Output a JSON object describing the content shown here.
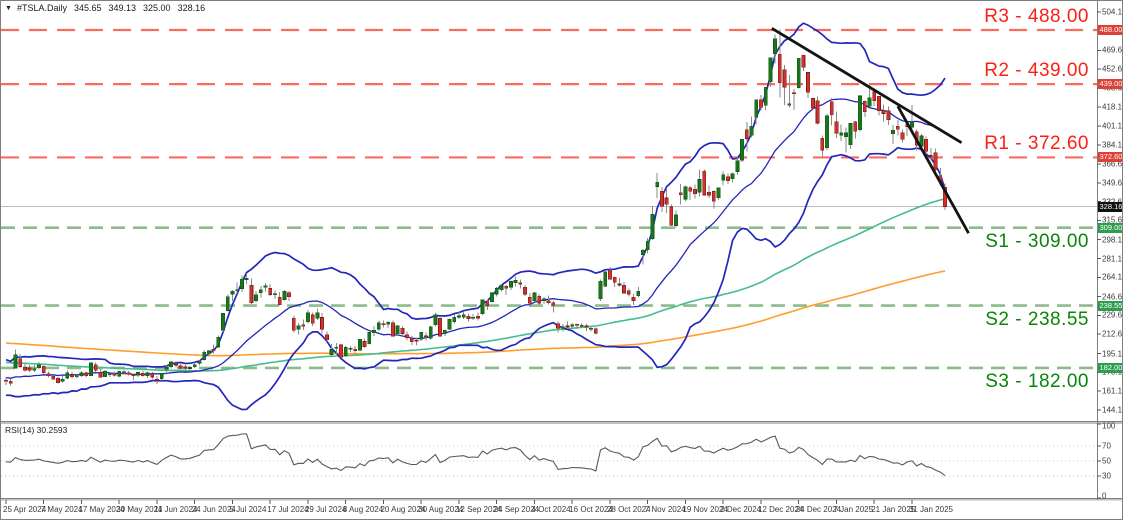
{
  "title": {
    "dropdown_icon": "▼",
    "symbol": "#TSLA.Daily",
    "open": "345.65",
    "high": "349.13",
    "low": "325.00",
    "close": "328.16"
  },
  "rsi_pane": {
    "label": "RSI(14) 30.2593"
  },
  "colors": {
    "up_candle": "#1c741c",
    "up_border": "#0f5a14",
    "down_candle": "#d03030",
    "down_border": "#7e1d14",
    "wick": "#8a8a8a",
    "bollinger": "#2326bb",
    "ma_fast": "#46bd8e",
    "ma_slow": "#ff9e2c",
    "resistance_line": "#f96b60",
    "resistance_text": "#fb2014",
    "resistance_badge": "#dd4136",
    "support_line": "#8cbc8c",
    "support_text": "#0a850a",
    "support_badge": "#2e9e4e",
    "current_price_line": "#b7bfc6",
    "current_price_badge": "#111111",
    "trendline": "#141414",
    "rsi_line": "#5a5a5a",
    "axis_text": "#3a3a3a",
    "border": "#7f7f7f"
  },
  "chart_data": {
    "type": "candlestick",
    "symbol": "TSLA",
    "timeframe": "Daily",
    "title": "#TSLA.Daily",
    "last_quote": {
      "open": 345.65,
      "high": 349.13,
      "low": 325.0,
      "close": 328.16
    },
    "ylim": [
      134,
      507
    ],
    "grid": "off",
    "price_axis_ticks": [
      "504.10",
      "469.60",
      "452.60",
      "435.60",
      "418.10",
      "401.10",
      "384.10",
      "366.60",
      "349.60",
      "332.60",
      "315.60",
      "298.10",
      "281.10",
      "264.10",
      "246.60",
      "229.60",
      "212.60",
      "195.10",
      "178.10",
      "161.10",
      "144.10"
    ],
    "levels": [
      {
        "name": "R3",
        "label": "R3 - 488.00",
        "price": 488.0,
        "badge": "488.00",
        "kind": "resistance",
        "label_side": "above"
      },
      {
        "name": "R2",
        "label": "R2 - 439.00",
        "price": 439.0,
        "badge": "439.00",
        "kind": "resistance",
        "label_side": "above"
      },
      {
        "name": "R1",
        "label": "R1 - 372.60",
        "price": 372.6,
        "badge": "372.60",
        "kind": "resistance",
        "label_side": "above"
      },
      {
        "name": "S1",
        "label": "S1 - 309.00",
        "price": 309.0,
        "badge": "309.00",
        "kind": "support",
        "label_side": "below"
      },
      {
        "name": "S2",
        "label": "S2 - 238.55",
        "price": 238.55,
        "badge": "238.55",
        "kind": "support",
        "label_side": "below"
      },
      {
        "name": "S3",
        "label": "S3 - 182.00",
        "price": 182.0,
        "badge": "182.00",
        "kind": "support",
        "label_side": "below"
      }
    ],
    "current_price_line": {
      "price": 328.16,
      "badge": "328.16"
    },
    "trendlines": [
      {
        "i1": 162.3,
        "p1": 489.5,
        "i2": 202.5,
        "p2": 386.0
      },
      {
        "i1": 189.0,
        "p1": 419.0,
        "i2": 204.0,
        "p2": 304.0
      }
    ],
    "date_axis": {
      "labels": [
        "25 Apr 2024",
        "7 May 2024",
        "17 May 2024",
        "30 May 2024",
        "11 Jun 2024",
        "24 Jun 2024",
        "5 Jul 2024",
        "17 Jul 2024",
        "29 Jul 2024",
        "8 Aug 2024",
        "20 Aug 2024",
        "30 Aug 2024",
        "12 Sep 2024",
        "24 Sep 2024",
        "4 Oct 2024",
        "16 Oct 2024",
        "28 Oct 2024",
        "7 Nov 2024",
        "19 Nov 2024",
        "2 Dec 2024",
        "12 Dec 2024",
        "24 Dec 2024",
        "7 Jan 2025",
        "21 Jan 2025",
        "31 Jan 2025"
      ],
      "every_n_candles": 8
    },
    "rsi_axis": {
      "ticks": [
        100,
        70,
        50,
        30,
        0
      ],
      "dotted_levels": [
        70,
        50,
        30
      ]
    },
    "indicators": {
      "bollinger": {
        "period": 20,
        "deviation": 2
      },
      "ma_fast": {
        "period": 100
      },
      "ma_slow": {
        "period": 200
      },
      "rsi": {
        "period": 14,
        "last_value": 30.2593
      },
      "seed": {
        "length": 200,
        "from": 240,
        "to": 170,
        "wiggle": 8
      }
    },
    "candles": [
      [
        171,
        173.5,
        166.6,
        170.2
      ],
      [
        170,
        172.1,
        166.3,
        168.3
      ],
      [
        182,
        198.9,
        181.5,
        194.1
      ],
      [
        190.3,
        194.5,
        182,
        183.3
      ],
      [
        182.7,
        185.9,
        179,
        180
      ],
      [
        182,
        184.9,
        178.4,
        180
      ],
      [
        180.1,
        184.8,
        178.2,
        181.2
      ],
      [
        182.3,
        187.6,
        180.4,
        184.8
      ],
      [
        183.4,
        184.3,
        176.6,
        177.8
      ],
      [
        176.6,
        178.6,
        173.2,
        174.8
      ],
      [
        174.4,
        175.4,
        171.4,
        171.9
      ],
      [
        172.6,
        173.9,
        167.8,
        168.5
      ],
      [
        170,
        175.4,
        169,
        171.9
      ],
      [
        172.9,
        179.5,
        172,
        177.5
      ],
      [
        176.1,
        178.3,
        172.4,
        174
      ],
      [
        174,
        176.8,
        172.3,
        174.8
      ],
      [
        175,
        179.3,
        174,
        177.5
      ],
      [
        177.5,
        178.6,
        173.6,
        174.9
      ],
      [
        175,
        187,
        174.8,
        186.6
      ],
      [
        184.8,
        186.9,
        178.4,
        180.1
      ],
      [
        178,
        181.4,
        173.3,
        173.7
      ],
      [
        174,
        180.2,
        173.8,
        179.2
      ],
      [
        176.4,
        178.2,
        173.8,
        176.8
      ],
      [
        176.4,
        178.9,
        174.4,
        176.2
      ],
      [
        174.7,
        178.3,
        173.4,
        178.8
      ],
      [
        178.6,
        180.3,
        176,
        178.1
      ],
      [
        177.7,
        179.1,
        175.2,
        176.3
      ],
      [
        176,
        177.2,
        171.1,
        174.8
      ],
      [
        175.3,
        178.2,
        173.8,
        177.9
      ],
      [
        177.4,
        179.3,
        174.4,
        175
      ],
      [
        175.1,
        178.6,
        172.9,
        177.5
      ],
      [
        177,
        178.5,
        172.5,
        173.8
      ],
      [
        171.9,
        174.8,
        167.4,
        170.7
      ],
      [
        172.4,
        177.5,
        170.8,
        177.3
      ],
      [
        180.9,
        184.3,
        176,
        182.5
      ],
      [
        183.1,
        188,
        181.6,
        187.4
      ],
      [
        185.6,
        188.3,
        182.3,
        184.9
      ],
      [
        184.1,
        185.4,
        180.6,
        181.6
      ],
      [
        182.9,
        184.5,
        178.8,
        181.6
      ],
      [
        181.5,
        183.9,
        178.7,
        182.6
      ],
      [
        183.2,
        187,
        182,
        185
      ],
      [
        186.5,
        188.8,
        184.2,
        187.4
      ],
      [
        189.3,
        198.3,
        188.7,
        196.4
      ],
      [
        195.2,
        198.5,
        192.5,
        197.4
      ],
      [
        199,
        203.2,
        195.3,
        197.9
      ],
      [
        201,
        211.5,
        200.4,
        209.9
      ],
      [
        216,
        231.5,
        214.6,
        231.3
      ],
      [
        234,
        248.3,
        233,
        246.4
      ],
      [
        249,
        252.4,
        242.6,
        251.5
      ],
      [
        252,
        259.5,
        249.6,
        252.9
      ],
      [
        254,
        265.6,
        251,
        262.3
      ],
      [
        262,
        267.6,
        257.9,
        263.3
      ],
      [
        257,
        263,
        239.7,
        241
      ],
      [
        243,
        251.8,
        241.5,
        248.2
      ],
      [
        250,
        256,
        245.8,
        252.6
      ],
      [
        255,
        258.8,
        251.3,
        256.6
      ],
      [
        254,
        257.9,
        247.1,
        248.5
      ],
      [
        248.5,
        252.3,
        244.6,
        249.2
      ],
      [
        246,
        250.9,
        238.7,
        239.2
      ],
      [
        244,
        252.7,
        243.1,
        251.5
      ],
      [
        250,
        251.8,
        242.8,
        246.4
      ],
      [
        227,
        229.3,
        214.3,
        216
      ],
      [
        217,
        222.7,
        212.3,
        220.3
      ],
      [
        221,
        226,
        216.5,
        219.8
      ],
      [
        224,
        234.3,
        222.3,
        232.1
      ],
      [
        230,
        232.4,
        220,
        222.6
      ],
      [
        227,
        236,
        225.4,
        232.1
      ],
      [
        227.7,
        231.9,
        213.3,
        216.9
      ],
      [
        212,
        214.9,
        205.8,
        207.7
      ],
      [
        194,
        203.9,
        192.1,
        198.9
      ],
      [
        200,
        204.4,
        194.5,
        200.6
      ],
      [
        203,
        203.8,
        191.1,
        191.8
      ],
      [
        193,
        201.9,
        192,
        200.8
      ],
      [
        199,
        202,
        196.4,
        200
      ],
      [
        199,
        201.9,
        195.7,
        197.5
      ],
      [
        198,
        208.4,
        197.4,
        207.8
      ],
      [
        206,
        208.9,
        200.1,
        201.4
      ],
      [
        204,
        215.9,
        203.3,
        214.1
      ],
      [
        214,
        219.8,
        210.8,
        216.1
      ],
      [
        217,
        225.2,
        215.3,
        222.7
      ],
      [
        222,
        225,
        218.8,
        221.1
      ],
      [
        221.5,
        224.7,
        218.1,
        223.3
      ],
      [
        223,
        224.8,
        210.3,
        210.7
      ],
      [
        213,
        220.9,
        211.8,
        220.3
      ],
      [
        218,
        219.5,
        212,
        213.2
      ],
      [
        212,
        214.9,
        206.7,
        209.2
      ],
      [
        209,
        211,
        202.6,
        205.8
      ],
      [
        207,
        209.6,
        202.3,
        206.3
      ],
      [
        208,
        214.6,
        206.5,
        214.1
      ],
      [
        211,
        214.2,
        207,
        210.6
      ],
      [
        209,
        220,
        208,
        219.4
      ],
      [
        221,
        231.9,
        219.5,
        230.2
      ],
      [
        227,
        228.6,
        210.5,
        210.7
      ],
      [
        213,
        216.9,
        211.1,
        216.3
      ],
      [
        217,
        226.9,
        216.2,
        226.2
      ],
      [
        224,
        230.6,
        222.2,
        228.1
      ],
      [
        228,
        232.6,
        226.3,
        229.1
      ],
      [
        228,
        232.7,
        226.5,
        230.3
      ],
      [
        229,
        231,
        223.9,
        226.8
      ],
      [
        227.5,
        230.9,
        225.4,
        227.9
      ],
      [
        229,
        232.1,
        225.2,
        227.2
      ],
      [
        231,
        244.2,
        229.9,
        243.9
      ],
      [
        242,
        243.8,
        234.6,
        238.3
      ],
      [
        242,
        250.9,
        241.6,
        250
      ],
      [
        249,
        255.3,
        246.7,
        254.3
      ],
      [
        253,
        258,
        251.3,
        257
      ],
      [
        256,
        257.2,
        248,
        254.2
      ],
      [
        255,
        261.2,
        252.6,
        260.5
      ],
      [
        259,
        264.9,
        255.8,
        261.6
      ],
      [
        259,
        262.2,
        254.1,
        258
      ],
      [
        255,
        257.2,
        247,
        249
      ],
      [
        246,
        250,
        237.8,
        240.7
      ],
      [
        243,
        250.9,
        241.6,
        250.1
      ],
      [
        247,
        249.2,
        239.6,
        240.8
      ],
      [
        243,
        246.2,
        240,
        244.5
      ],
      [
        243,
        247.4,
        239.3,
        241.1
      ],
      [
        241,
        242.8,
        232.3,
        238.8
      ],
      [
        222,
        223.9,
        214.2,
        217.8
      ],
      [
        218,
        221.9,
        215,
        219.2
      ],
      [
        220,
        224.3,
        217.1,
        219.6
      ],
      [
        220,
        222.8,
        217.5,
        221.3
      ],
      [
        221.5,
        222.3,
        217.4,
        220.9
      ],
      [
        220,
        222.3,
        218.4,
        220.7
      ],
      [
        220,
        222,
        215.3,
        218.9
      ],
      [
        217,
        219.6,
        215.2,
        218
      ],
      [
        217.5,
        218.7,
        212.1,
        213.7
      ],
      [
        244.7,
        262.1,
        242.6,
        260.5
      ],
      [
        256,
        269.5,
        255.3,
        269.2
      ],
      [
        270,
        273.5,
        262.2,
        262.5
      ],
      [
        264,
        264.9,
        255.5,
        259.5
      ],
      [
        258,
        263.3,
        255.7,
        257.6
      ],
      [
        257,
        259.8,
        249.3,
        249.9
      ],
      [
        252,
        254,
        246.6,
        249
      ],
      [
        246,
        248.9,
        238.9,
        242.8
      ],
      [
        247.3,
        255.3,
        246.2,
        251.4
      ],
      [
        284.7,
        289.6,
        275.6,
        288.5
      ],
      [
        288.9,
        299.8,
        285.5,
        296.9
      ],
      [
        299,
        328.7,
        297.7,
        321.2
      ],
      [
        346.3,
        358.6,
        336,
        350
      ],
      [
        342,
        345.8,
        323.3,
        328.5
      ],
      [
        335.9,
        344.6,
        322.5,
        330.2
      ],
      [
        327.7,
        330,
        310.4,
        311.2
      ],
      [
        310.6,
        324.7,
        309.2,
        320.7
      ],
      [
        340.7,
        348.6,
        330,
        338.7
      ],
      [
        335,
        347.4,
        332.8,
        346
      ],
      [
        345,
        346.6,
        334.3,
        342
      ],
      [
        343.8,
        348,
        335.3,
        339.6
      ],
      [
        341.1,
        361.9,
        337.1,
        352.6
      ],
      [
        360.1,
        361.5,
        338,
        338.6
      ],
      [
        341,
        347,
        335.7,
        338.2
      ],
      [
        341.8,
        342.6,
        326.6,
        332.9
      ],
      [
        336.1,
        345.5,
        334.3,
        345.2
      ],
      [
        352,
        360,
        347.5,
        357.1
      ],
      [
        355,
        358,
        348.7,
        351.4
      ],
      [
        353.3,
        358.9,
        349.7,
        357.9
      ],
      [
        359.9,
        374,
        356.9,
        369.5
      ],
      [
        370,
        389.5,
        368.5,
        389.2
      ],
      [
        397.6,
        404.8,
        378,
        389.8
      ],
      [
        392.7,
        409.7,
        390.6,
        401
      ],
      [
        409,
        424.9,
        402.4,
        424.8
      ],
      [
        424.8,
        429.3,
        415,
        418.1
      ],
      [
        420,
        436.3,
        415.6,
        436.2
      ],
      [
        441.1,
        463.2,
        436.2,
        463
      ],
      [
        466.5,
        484,
        457.5,
        479.9
      ],
      [
        466,
        488.5,
        427,
        440.1
      ],
      [
        451.9,
        456.4,
        420,
        436.2
      ],
      [
        420,
        447.1,
        417.6,
        421.1
      ],
      [
        431,
        434.5,
        415.4,
        430.6
      ],
      [
        435.9,
        462.8,
        435.1,
        462.3
      ],
      [
        465.2,
        465.3,
        451,
        454.1
      ],
      [
        449.5,
        450,
        426.5,
        431.7
      ],
      [
        426.1,
        427,
        415.8,
        417.4
      ],
      [
        423.8,
        427.9,
        402.5,
        403.8
      ],
      [
        390.1,
        392.7,
        373,
        379.3
      ],
      [
        381.5,
        411.9,
        379.5,
        410.4
      ],
      [
        423.2,
        426.4,
        401.7,
        411.1
      ],
      [
        405,
        414.3,
        390,
        394.4
      ],
      [
        392.9,
        402.5,
        387.4,
        394.9
      ],
      [
        391.4,
        399.5,
        377.3,
        394.7
      ],
      [
        384,
        403.9,
        380.1,
        403.3
      ],
      [
        405,
        405.5,
        389.9,
        396.4
      ],
      [
        397.7,
        429.3,
        395.9,
        428.2
      ],
      [
        423.5,
        424.3,
        409.3,
        413.8
      ],
      [
        419,
        439.7,
        418.2,
        426.5
      ],
      [
        431.9,
        435.6,
        419,
        424.1
      ],
      [
        428,
        428.3,
        410.6,
        415.1
      ],
      [
        414.8,
        420.7,
        405,
        412.4
      ],
      [
        415,
        418.7,
        402,
        406.6
      ],
      [
        394,
        402.1,
        385,
        397.2
      ],
      [
        401,
        406.7,
        392.7,
        398.1
      ],
      [
        395,
        398,
        386.3,
        389.1
      ],
      [
        402.5,
        406,
        391.8,
        400.3
      ],
      [
        400,
        419.9,
        396.5,
        404.6
      ],
      [
        396,
        398.1,
        378.8,
        383.7
      ],
      [
        383,
        394,
        380.6,
        392.2
      ],
      [
        389,
        391.5,
        373,
        378.2
      ],
      [
        374.4,
        381.1,
        370,
        374.3
      ],
      [
        377,
        380.6,
        357.2,
        361.6
      ],
      [
        356.2,
        362.9,
        347,
        350.7
      ],
      [
        345.65,
        349.13,
        325,
        328.16
      ]
    ]
  }
}
